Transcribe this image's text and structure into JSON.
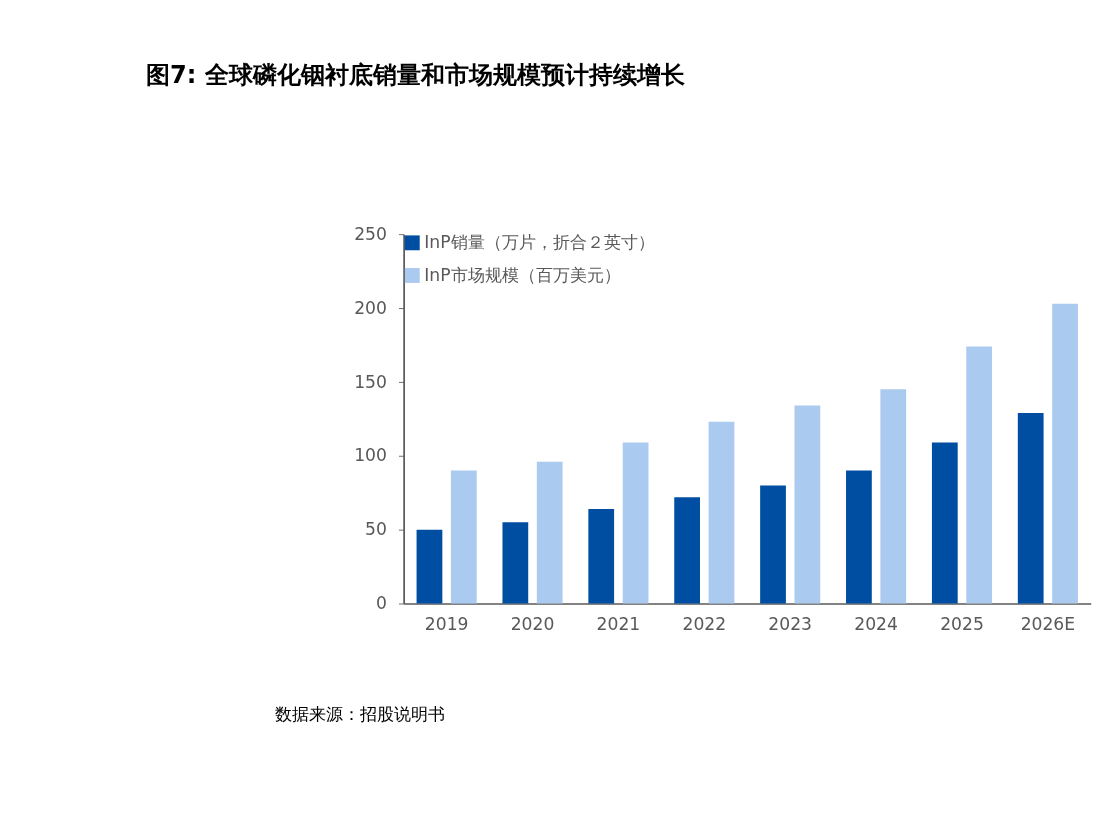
{
  "chart_data": {
    "type": "bar",
    "title": "图7: 全球磷化铟衬底销量和市场规模预计持续增长",
    "categories": [
      "2019",
      "2020",
      "2021",
      "2022",
      "2023",
      "2024",
      "2025",
      "2026E"
    ],
    "series": [
      {
        "name": "InP销量（万片，折合２英寸）",
        "color": "#004ea2",
        "values": [
          50,
          55,
          64,
          72,
          80,
          90,
          109,
          129
        ]
      },
      {
        "name": "InP市场规模（百万美元）",
        "color": "#abcaf0",
        "values": [
          90,
          96,
          109,
          123,
          134,
          145,
          174,
          203
        ]
      }
    ],
    "ylim": [
      0,
      250
    ],
    "yticks": [
      0,
      50,
      100,
      150,
      200,
      250
    ],
    "grid": false,
    "legend": "top left",
    "annotations": [
      "数据来源：招股说明书"
    ]
  }
}
